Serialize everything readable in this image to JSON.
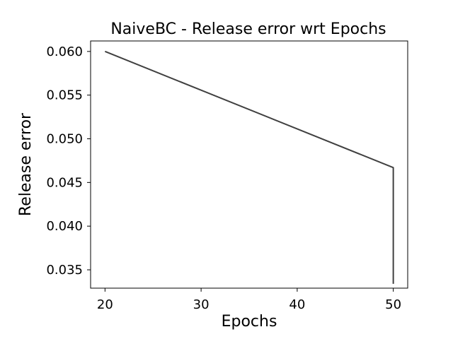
{
  "chart_data": {
    "type": "line",
    "title": "NaiveBC - Release error wrt Epochs",
    "xlabel": "Epochs",
    "ylabel": "Release error",
    "xlim": [
      18.5,
      51.5
    ],
    "ylim": [
      0.0329,
      0.0612
    ],
    "xticks": [
      20,
      30,
      40,
      50
    ],
    "xtick_labels": [
      "20",
      "30",
      "40",
      "50"
    ],
    "yticks": [
      0.035,
      0.04,
      0.045,
      0.05,
      0.055,
      0.06
    ],
    "ytick_labels": [
      "0.035",
      "0.040",
      "0.045",
      "0.050",
      "0.055",
      "0.060"
    ],
    "grid": false,
    "series": [
      {
        "x": [
          20,
          50,
          50
        ],
        "y": [
          0.06,
          0.0467,
          0.0334
        ],
        "color": "#404040"
      }
    ]
  }
}
